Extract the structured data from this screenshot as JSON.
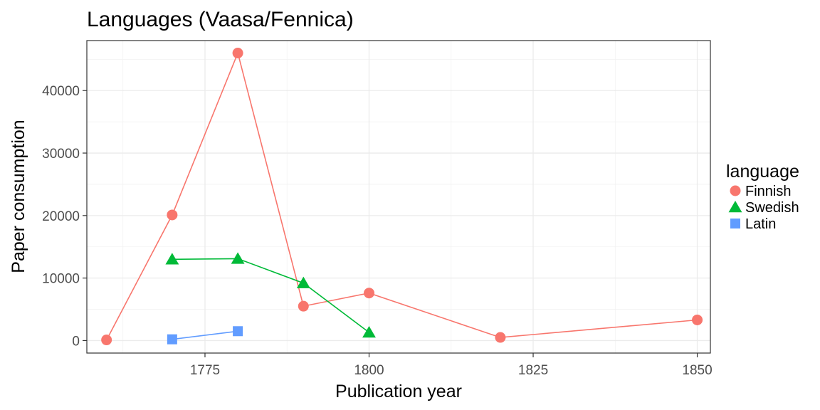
{
  "chart_data": {
    "type": "line",
    "title": "Languages (Vaasa/Fennica)",
    "xlabel": "Publication year",
    "ylabel": "Paper consumption",
    "xlim": [
      1757,
      1852
    ],
    "ylim": [
      -2000,
      48000
    ],
    "x_ticks": [
      1775,
      1800,
      1825,
      1850
    ],
    "x_minor_ticks": [
      1762.5,
      1787.5,
      1812.5,
      1837.5
    ],
    "y_ticks": [
      0,
      10000,
      20000,
      30000,
      40000
    ],
    "y_minor_ticks": [
      5000,
      15000,
      25000,
      35000,
      45000
    ],
    "grid": true,
    "legend": {
      "title": "language",
      "position": "right"
    },
    "series": [
      {
        "name": "Finnish",
        "color": "#F8766D",
        "marker": "circle",
        "points": [
          {
            "x": 1760,
            "y": 100
          },
          {
            "x": 1770,
            "y": 20100
          },
          {
            "x": 1780,
            "y": 46000
          },
          {
            "x": 1790,
            "y": 5500
          },
          {
            "x": 1800,
            "y": 7600
          },
          {
            "x": 1820,
            "y": 500
          },
          {
            "x": 1850,
            "y": 3300
          }
        ]
      },
      {
        "name": "Swedish",
        "color": "#00BA38",
        "marker": "triangle",
        "points": [
          {
            "x": 1770,
            "y": 13000
          },
          {
            "x": 1780,
            "y": 13100
          },
          {
            "x": 1790,
            "y": 9200
          },
          {
            "x": 1800,
            "y": 1300
          }
        ]
      },
      {
        "name": "Latin",
        "color": "#619CFF",
        "marker": "square",
        "points": [
          {
            "x": 1770,
            "y": 200
          },
          {
            "x": 1780,
            "y": 1500
          }
        ]
      }
    ]
  }
}
